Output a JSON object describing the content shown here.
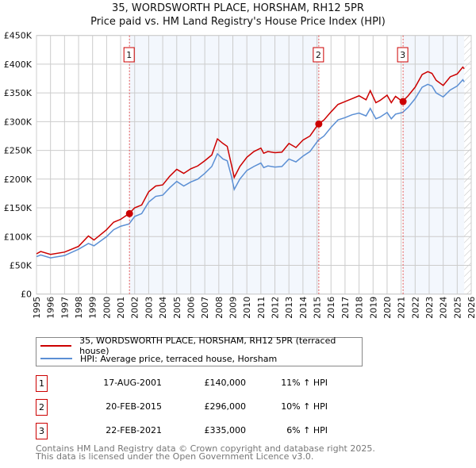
{
  "chart_data": {
    "type": "line",
    "title": "35, WORDSWORTH PLACE, HORSHAM, RH12 5PR",
    "subtitle": "Price paid vs. HM Land Registry's House Price Index (HPI)",
    "xlim": [
      1995,
      2026
    ],
    "ylim": [
      0,
      450000
    ],
    "y_ticks": [
      {
        "v": 0,
        "l": "£0"
      },
      {
        "v": 50000,
        "l": "£50K"
      },
      {
        "v": 100000,
        "l": "£100K"
      },
      {
        "v": 150000,
        "l": "£150K"
      },
      {
        "v": 200000,
        "l": "£200K"
      },
      {
        "v": 250000,
        "l": "£250K"
      },
      {
        "v": 300000,
        "l": "£300K"
      },
      {
        "v": 350000,
        "l": "£350K"
      },
      {
        "v": 400000,
        "l": "£400K"
      },
      {
        "v": 450000,
        "l": "£450K"
      }
    ],
    "x_ticks": [
      "1995",
      "1996",
      "1997",
      "1998",
      "1999",
      "2000",
      "2001",
      "2002",
      "2003",
      "2004",
      "2005",
      "2006",
      "2007",
      "2008",
      "2009",
      "2010",
      "2011",
      "2012",
      "2013",
      "2014",
      "2015",
      "2016",
      "2017",
      "2018",
      "2019",
      "2020",
      "2021",
      "2022",
      "2023",
      "2024",
      "2025",
      "2026"
    ],
    "x": [
      1995,
      1995.3,
      1996,
      1997,
      1998,
      1998.7,
      1999.1,
      2000,
      2000.5,
      2001,
      2001.6,
      2002,
      2002.5,
      2003,
      2003.5,
      2004,
      2004.5,
      2005,
      2005.5,
      2006,
      2006.5,
      2007,
      2007.5,
      2007.9,
      2008.3,
      2008.6,
      2008.9,
      2009.1,
      2009.5,
      2010,
      2010.5,
      2011,
      2011.2,
      2011.5,
      2012,
      2012.5,
      2013,
      2013.5,
      2014,
      2014.5,
      2015.1,
      2015.5,
      2016,
      2016.5,
      2017,
      2017.5,
      2018,
      2018.5,
      2018.8,
      2019.2,
      2019.5,
      2020,
      2020.3,
      2020.6,
      2021.1,
      2021.5,
      2022,
      2022.5,
      2022.9,
      2023.2,
      2023.5,
      2024,
      2024.5,
      2025,
      2025.4,
      2025.5
    ],
    "series": [
      {
        "name": "35, WORDSWORTH PLACE, HORSHAM, RH12 5PR (terraced house)",
        "color": "#cc0000",
        "values": [
          70000,
          74000,
          69000,
          73000,
          83000,
          101000,
          94000,
          112000,
          125000,
          130000,
          140000,
          150000,
          155000,
          178000,
          188000,
          190000,
          205000,
          217000,
          210000,
          218000,
          223000,
          232000,
          242000,
          270000,
          262000,
          257000,
          225000,
          203000,
          222000,
          238000,
          248000,
          254000,
          245000,
          248000,
          246000,
          247000,
          262000,
          255000,
          268000,
          275000,
          296000,
          303000,
          317000,
          330000,
          335000,
          340000,
          345000,
          338000,
          354000,
          333000,
          337000,
          346000,
          333000,
          344000,
          335000,
          345000,
          360000,
          382000,
          387000,
          384000,
          372000,
          363000,
          378000,
          383000,
          395000,
          392000
        ]
      },
      {
        "name": "HPI: Average price, terraced house, Horsham",
        "color": "#5b8fd4",
        "values": [
          65000,
          68000,
          63000,
          67000,
          78000,
          88000,
          84000,
          100000,
          112000,
          118000,
          122000,
          135000,
          140000,
          160000,
          170000,
          172000,
          185000,
          196000,
          188000,
          195000,
          200000,
          210000,
          222000,
          244000,
          235000,
          232000,
          205000,
          182000,
          200000,
          215000,
          222000,
          228000,
          220000,
          223000,
          221000,
          222000,
          235000,
          230000,
          240000,
          248000,
          268000,
          275000,
          290000,
          303000,
          307000,
          312000,
          315000,
          310000,
          323000,
          305000,
          308000,
          316000,
          305000,
          313000,
          316000,
          325000,
          340000,
          360000,
          365000,
          362000,
          350000,
          343000,
          355000,
          362000,
          373000,
          369000
        ]
      }
    ],
    "sales": [
      {
        "label": "1",
        "x": 2001.63,
        "price": 140000,
        "date": "17-AUG-2001",
        "price_text": "£140,000",
        "hpi": "11% ↑ HPI"
      },
      {
        "label": "2",
        "x": 2015.13,
        "price": 296000,
        "date": "20-FEB-2015",
        "price_text": "£296,000",
        "hpi": "10% ↑ HPI"
      },
      {
        "label": "3",
        "x": 2021.14,
        "price": 335000,
        "date": "22-FEB-2021",
        "price_text": "£335,000",
        "hpi": "6% ↑ HPI"
      }
    ],
    "forecast_from": 2025.5,
    "legend_position": "below"
  },
  "footer": {
    "line1": "Contains HM Land Registry data © Crown copyright and database right 2025.",
    "line2": "This data is licensed under the Open Government Licence v3.0."
  }
}
